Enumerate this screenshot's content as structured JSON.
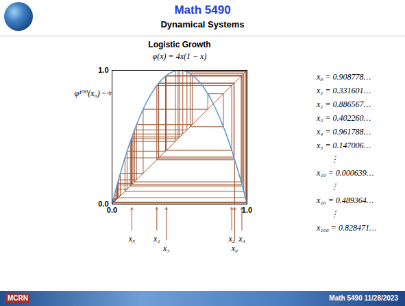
{
  "header": {
    "title": "Math 5490",
    "subtitle": "Dynamical Systems"
  },
  "chart_data": {
    "type": "cobweb",
    "title": "Logistic Growth",
    "subtitle": "φ(x) = 4x(1 − x)",
    "xlim": [
      0,
      1
    ],
    "ylim": [
      0,
      1
    ],
    "xticks": [
      0,
      1
    ],
    "yticks": [
      0,
      1
    ],
    "curve": {
      "color": "#5b9bd5",
      "x": [
        0,
        0.05,
        0.1,
        0.15,
        0.2,
        0.25,
        0.3,
        0.35,
        0.4,
        0.45,
        0.5,
        0.55,
        0.6,
        0.65,
        0.7,
        0.75,
        0.8,
        0.85,
        0.9,
        0.95,
        1
      ],
      "y": [
        0,
        0.19,
        0.36,
        0.51,
        0.64,
        0.75,
        0.84,
        0.91,
        0.96,
        0.99,
        1,
        0.99,
        0.96,
        0.91,
        0.84,
        0.75,
        0.64,
        0.51,
        0.36,
        0.19,
        0
      ]
    },
    "diagonal": {
      "x": [
        0,
        1
      ],
      "y": [
        0,
        1
      ]
    },
    "orbit": {
      "color": "#a0522d",
      "values": [
        0.908778,
        0.331601,
        0.886567,
        0.40226,
        0.961788,
        0.147006,
        0.501584,
        0.99999,
        4e-05,
        0.00016,
        0.000639,
        0.002558,
        0.010207,
        0.040411,
        0.15511,
        0.524203,
        0.997657,
        0.00935,
        0.037049,
        0.142706,
        0.489364,
        0.999548,
        0.001807,
        0.007215,
        0.028652,
        0.111324,
        0.395724,
        0.956506,
        0.166409,
        0.554868,
        0.987958,
        0.047588,
        0.181294,
        0.593706,
        0.964877,
        0.135558,
        0.468728,
        0.996088,
        0.015587,
        0.061376,
        0.230436,
        0.709341,
        0.824705,
        0.578267,
        0.975497,
        0.09561,
        0.345874,
        0.904981,
        0.343962,
        0.902609,
        0.351624
      ]
    },
    "annotation": {
      "label": "φ¹⁰⁰(x₀)",
      "value": 0.828471
    },
    "markers": [
      {
        "label": "x₅",
        "value": 0.147006
      },
      {
        "label": "x₁",
        "value": 0.331601
      },
      {
        "label": "x₃",
        "value": 0.40226
      },
      {
        "label": "x₂",
        "value": 0.886567
      },
      {
        "label": "x₀",
        "value": 0.908778
      },
      {
        "label": "x₄",
        "value": 0.961788
      }
    ]
  },
  "iterates_list": [
    "x₀ = 0.908778…",
    "x₁ = 0.331601…",
    "x₂ = 0.886567…",
    "x₃ = 0.402260…",
    "x₄ = 0.961788…",
    "x₅ = 0.147006…",
    "⋮",
    "x₁₀ = 0.000639…",
    "⋮",
    "x₂₀ = 0.489364…",
    "⋮",
    "x₁₀₀ = 0.828471…"
  ],
  "footer": {
    "logo": "MCRN",
    "text": "Math 5490  11/28/2023"
  }
}
